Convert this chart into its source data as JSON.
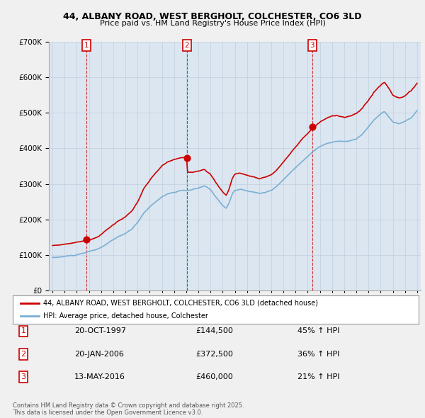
{
  "title1": "44, ALBANY ROAD, WEST BERGHOLT, COLCHESTER, CO6 3LD",
  "title2": "Price paid vs. HM Land Registry's House Price Index (HPI)",
  "background_color": "#f0f0f0",
  "plot_bg_color": "#dce6f0",
  "sale_color": "#cc0000",
  "hpi_color": "#7aafd4",
  "sale_label": "44, ALBANY ROAD, WEST BERGHOLT, COLCHESTER, CO6 3LD (detached house)",
  "hpi_label": "HPI: Average price, detached house, Colchester",
  "transactions": [
    {
      "num": 1,
      "date": "20-OCT-1997",
      "price": "£144,500",
      "pct": "45% ↑ HPI",
      "year": 1997.8
    },
    {
      "num": 2,
      "date": "20-JAN-2006",
      "price": "£372,500",
      "pct": "36% ↑ HPI",
      "year": 2006.05
    },
    {
      "num": 3,
      "date": "13-MAY-2016",
      "price": "£460,000",
      "pct": "21% ↑ HPI",
      "year": 2016.37
    }
  ],
  "sale_prices": [
    144500,
    372500,
    460000
  ],
  "sale_years": [
    1997.8,
    2006.05,
    2016.37
  ],
  "footer": "Contains HM Land Registry data © Crown copyright and database right 2025.\nThis data is licensed under the Open Government Licence v3.0.",
  "ylim": [
    0,
    700000
  ],
  "xlim_start": 1994.7,
  "xlim_end": 2025.3
}
